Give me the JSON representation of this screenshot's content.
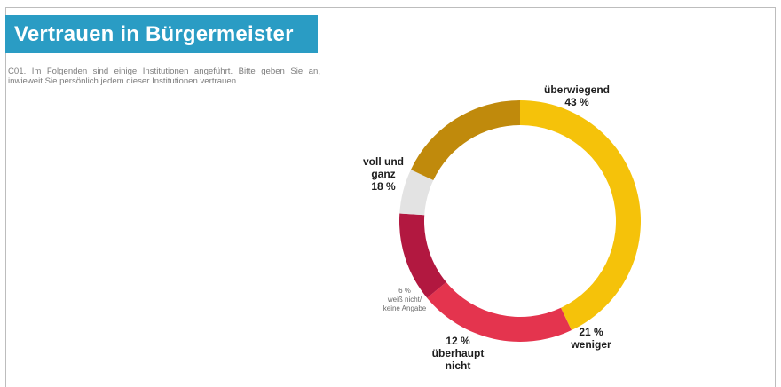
{
  "header": {
    "title": "Vertrauen in Bürgermeister"
  },
  "question": "C01. Im Folgenden sind einige Institutionen angeführt. Bitte geben Sie an, inwieweit Sie persönlich jedem dieser Institutionen vertrauen.",
  "chart_data": {
    "type": "pie",
    "donut": true,
    "unit": "%",
    "slices": [
      {
        "label_lines": [
          "überwiegend"
        ],
        "value": 43,
        "value_text": "43 %",
        "color": "#f5c20a"
      },
      {
        "label_lines": [
          "weniger"
        ],
        "value": 21,
        "value_text": "21 %",
        "color": "#e4344e"
      },
      {
        "label_lines": [
          "überhaupt",
          "nicht"
        ],
        "value": 12,
        "value_text": "12 %",
        "color": "#b21840"
      },
      {
        "label_lines": [
          "weiß nicht/",
          "keine Angabe"
        ],
        "value": 6,
        "value_text": "6 %",
        "color": "#e3e3e3"
      },
      {
        "label_lines": [
          "voll und",
          "ganz"
        ],
        "value": 18,
        "value_text": "18 %",
        "color": "#c08a0c"
      }
    ]
  }
}
